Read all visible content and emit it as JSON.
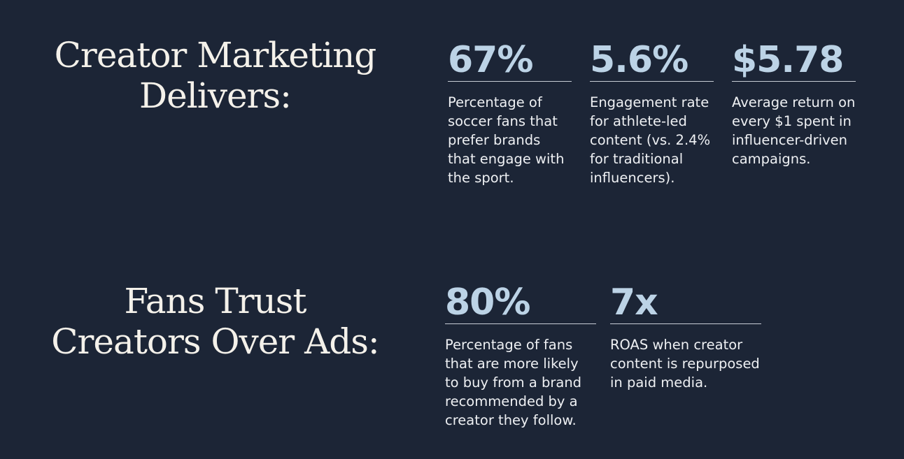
{
  "section1": {
    "heading_line1": "Creator Marketing",
    "heading_line2": "Delivers:",
    "stats": [
      {
        "value": "67%",
        "description": "Percentage of soccer fans that prefer brands that engage with the sport."
      },
      {
        "value": "5.6%",
        "description": "Engagement rate for athlete-led content (vs. 2.4% for traditional influencers)."
      },
      {
        "value": "$5.78",
        "description": "Average return on every $1 spent in influencer-driven campaigns."
      }
    ]
  },
  "section2": {
    "heading_line1": "Fans Trust",
    "heading_line2": "Creators Over Ads:",
    "stats": [
      {
        "value": "80%",
        "description": "Percentage of fans that are more likely to buy from a brand recommended by a creator they follow."
      },
      {
        "value": "7x",
        "description": "ROAS when creator content is repurposed in paid media."
      }
    ]
  },
  "colors": {
    "background": "#1c2536",
    "accent": "#bcd3e6",
    "text": "#f2f0ea"
  }
}
